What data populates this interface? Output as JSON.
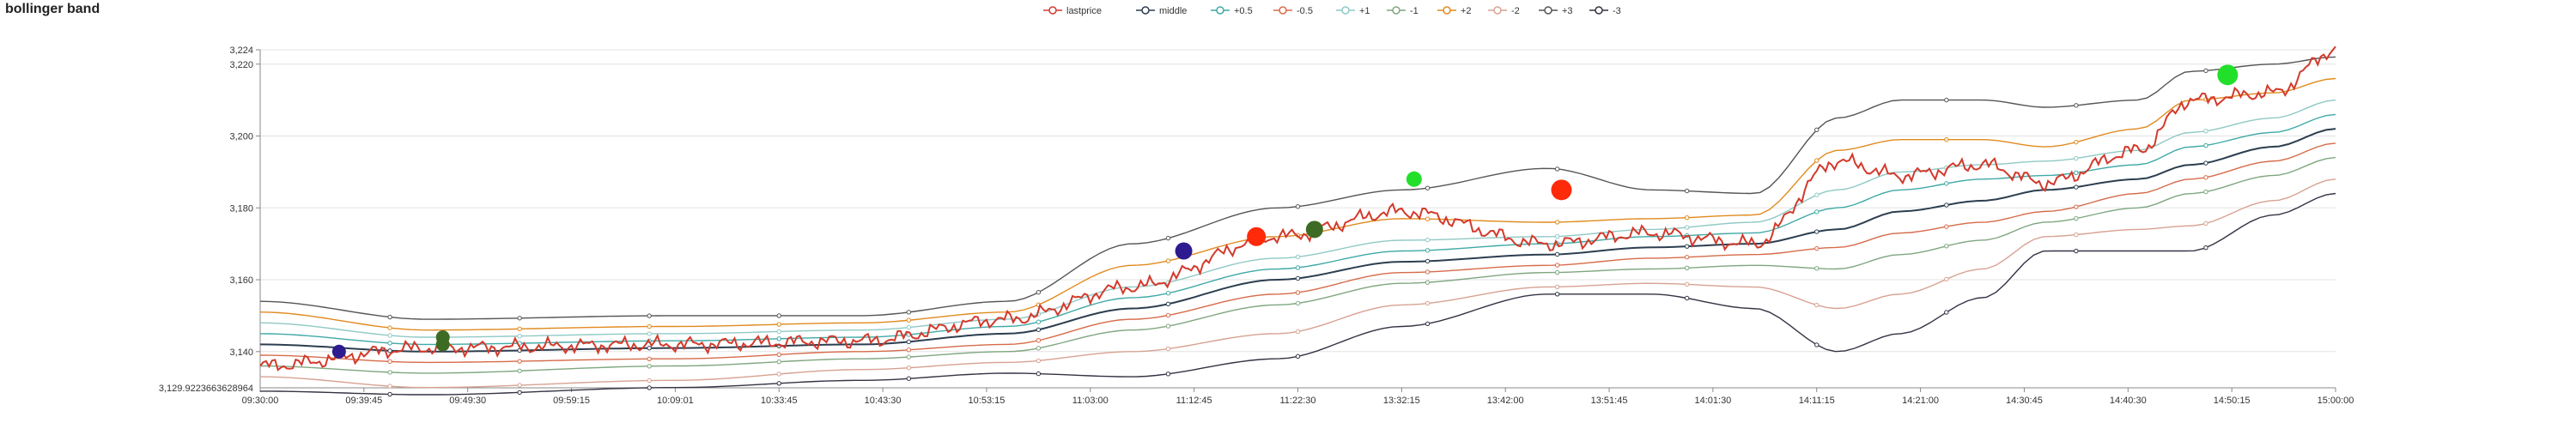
{
  "chart_data": {
    "type": "line",
    "title": "bollinger band",
    "legend_position": "top-center",
    "grid": true,
    "ylim": [
      3129.922366362896,
      3224
    ],
    "y_ticks": [
      3140,
      3160,
      3180,
      3200,
      3220,
      3224
    ],
    "y_tick_labels": [
      "3,140",
      "3,160",
      "3,180",
      "3,200",
      "3,220",
      "3,224"
    ],
    "y_min_label": "3,129.922366362896​4",
    "x_tick_labels": [
      "09:30:00",
      "09:39:45",
      "09:49:30",
      "09:59:15",
      "10:09:01",
      "10:33:45",
      "10:43:30",
      "10:53:15",
      "11:03:00",
      "11:12:45",
      "11:22:30",
      "13:32:15",
      "13:42:00",
      "13:51:45",
      "14:01:30",
      "14:11:15",
      "14:21:00",
      "14:30:45",
      "14:40:30",
      "14:50:15",
      "15:00:00"
    ],
    "x_knots": [
      0,
      0.08,
      0.2,
      0.29,
      0.36,
      0.42,
      0.49,
      0.55,
      0.62,
      0.67,
      0.72,
      0.76,
      0.79,
      0.83,
      0.86,
      0.905,
      0.93,
      0.97,
      1.0
    ],
    "series": [
      {
        "name": "lastprice",
        "color": "#d23a2c",
        "values": [
          3136,
          3141,
          3142,
          3143,
          3149,
          3158,
          3172,
          3179,
          3170,
          3173,
          3170,
          3193,
          3189,
          3192,
          3187,
          3196,
          3210,
          3212,
          3224
        ]
      },
      {
        "name": "middle",
        "color": "#2c3e50",
        "values": [
          3142,
          3140,
          3141,
          3142,
          3145,
          3152,
          3160,
          3165,
          3167,
          3169,
          3170,
          3174,
          3179,
          3182,
          3185,
          3188,
          3192,
          3197,
          3202
        ]
      },
      {
        "name": "+0.5",
        "color": "#3fa9a6",
        "values": [
          3145,
          3142,
          3143,
          3144,
          3147,
          3155,
          3163,
          3168,
          3170,
          3172,
          3173,
          3180,
          3185,
          3188,
          3189,
          3192,
          3197,
          3201,
          3206
        ]
      },
      {
        "name": "-0.5",
        "color": "#d66b4a",
        "values": [
          3139,
          3137,
          3138,
          3140,
          3142,
          3149,
          3156,
          3162,
          3164,
          3166,
          3167,
          3169,
          3173,
          3176,
          3179,
          3184,
          3188,
          3193,
          3198
        ]
      },
      {
        "name": "+1",
        "color": "#8fc9c5",
        "values": [
          3148,
          3144,
          3145,
          3146,
          3149,
          3158,
          3166,
          3171,
          3172,
          3174,
          3176,
          3185,
          3190,
          3192,
          3193,
          3196,
          3201,
          3205,
          3210
        ]
      },
      {
        "name": "-1",
        "color": "#7fa67f",
        "values": [
          3136,
          3134,
          3136,
          3138,
          3140,
          3146,
          3153,
          3159,
          3162,
          3163,
          3164,
          3163,
          3167,
          3171,
          3176,
          3180,
          3184,
          3189,
          3194
        ]
      },
      {
        "name": "+2",
        "color": "#e08a1e",
        "values": [
          3151,
          3146,
          3147,
          3148,
          3151,
          3164,
          3172,
          3177,
          3176,
          3177,
          3178,
          3196,
          3199,
          3199,
          3197,
          3202,
          3210,
          3212,
          3216
        ]
      },
      {
        "name": "-2",
        "color": "#d7a292",
        "values": [
          3133,
          3130,
          3132,
          3135,
          3137,
          3140,
          3145,
          3153,
          3158,
          3159,
          3158,
          3152,
          3156,
          3163,
          3172,
          3174,
          3175,
          3182,
          3188
        ]
      },
      {
        "name": "+3",
        "color": "#555555",
        "values": [
          3154,
          3149,
          3150,
          3150,
          3154,
          3170,
          3180,
          3185,
          3191,
          3185,
          3184,
          3205,
          3210,
          3210,
          3208,
          3210,
          3218,
          3220,
          3222
        ]
      },
      {
        "name": "-3",
        "color": "#333344",
        "values": [
          3129,
          3128,
          3130,
          3132,
          3134,
          3133,
          3138,
          3147,
          3156,
          3156,
          3152,
          3140,
          3145,
          3155,
          3168,
          3168,
          3168,
          3178,
          3184
        ]
      }
    ],
    "markers": [
      {
        "x": 0.038,
        "y": 3140,
        "color": "#2d1b8f",
        "size": 8
      },
      {
        "x": 0.088,
        "y": 3144,
        "color": "#3d6b24",
        "size": 8
      },
      {
        "x": 0.088,
        "y": 3142,
        "color": "#3d6b24",
        "size": 8
      },
      {
        "x": 0.445,
        "y": 3168,
        "color": "#2d1b8f",
        "size": 10
      },
      {
        "x": 0.48,
        "y": 3172,
        "color": "#ff2a0a",
        "size": 11
      },
      {
        "x": 0.508,
        "y": 3174,
        "color": "#3d6b24",
        "size": 10
      },
      {
        "x": 0.556,
        "y": 3188,
        "color": "#22e02a",
        "size": 9
      },
      {
        "x": 0.627,
        "y": 3185,
        "color": "#ff2a0a",
        "size": 12
      },
      {
        "x": 0.948,
        "y": 3217,
        "color": "#22e02a",
        "size": 12
      }
    ]
  }
}
